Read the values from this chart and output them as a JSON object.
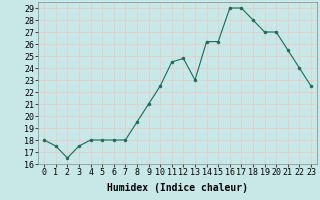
{
  "x": [
    0,
    1,
    2,
    3,
    4,
    5,
    6,
    7,
    8,
    9,
    10,
    11,
    12,
    13,
    14,
    15,
    16,
    17,
    18,
    19,
    20,
    21,
    22,
    23
  ],
  "y": [
    18,
    17.5,
    16.5,
    17.5,
    18,
    18,
    18,
    18,
    19.5,
    21,
    22.5,
    24.5,
    24.8,
    23,
    26.2,
    26.2,
    29,
    29,
    28,
    27,
    27,
    25.5,
    24,
    22.5
  ],
  "line_color": "#1a6b5a",
  "marker_color": "#1a6b5a",
  "bg_color": "#c8e8e8",
  "grid_color": "#e8c8c8",
  "xlabel": "Humidex (Indice chaleur)",
  "ylim": [
    16,
    29.5
  ],
  "xlim": [
    -0.5,
    23.5
  ],
  "yticks": [
    16,
    17,
    18,
    19,
    20,
    21,
    22,
    23,
    24,
    25,
    26,
    27,
    28,
    29
  ],
  "xticks": [
    0,
    1,
    2,
    3,
    4,
    5,
    6,
    7,
    8,
    9,
    10,
    11,
    12,
    13,
    14,
    15,
    16,
    17,
    18,
    19,
    20,
    21,
    22,
    23
  ],
  "xlabel_fontsize": 7,
  "tick_fontsize": 6
}
